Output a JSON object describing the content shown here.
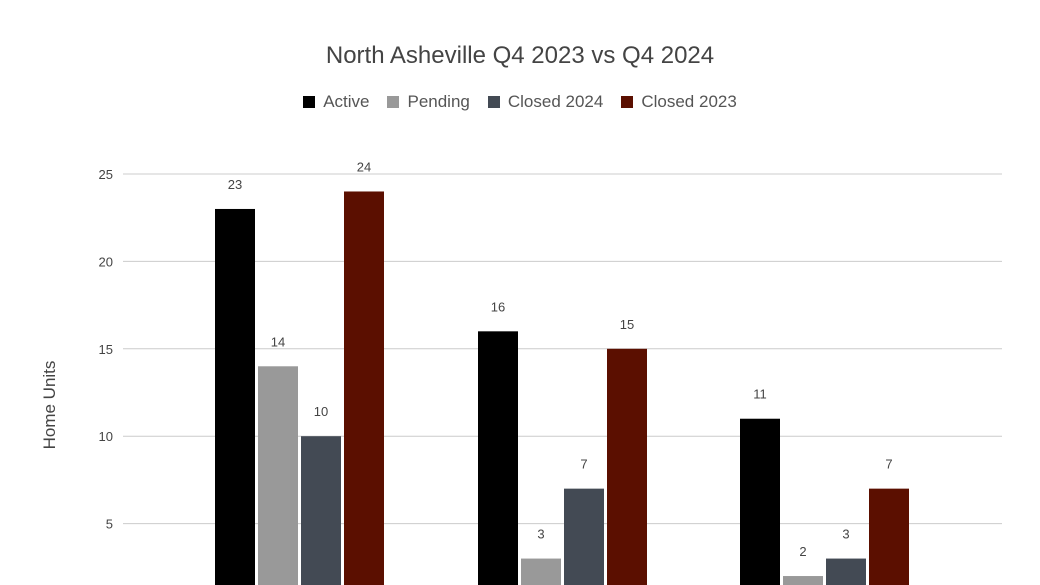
{
  "chart_data": {
    "type": "bar",
    "title": "North Asheville Q4 2023 vs Q4 2024",
    "ylabel": "Home Units",
    "xlabel": "",
    "ylim": [
      0,
      25
    ],
    "yticks": [
      5,
      10,
      15,
      20,
      25
    ],
    "grid": true,
    "legend_position": "top",
    "categories": [
      "",
      "",
      ""
    ],
    "series": [
      {
        "name": "Active",
        "color": "#000000",
        "values": [
          23,
          16,
          11
        ]
      },
      {
        "name": "Pending",
        "color": "#999999",
        "values": [
          14,
          3,
          2
        ]
      },
      {
        "name": "Closed 2024",
        "color": "#434a54",
        "values": [
          10,
          7,
          3
        ]
      },
      {
        "name": "Closed 2023",
        "color": "#5b0f00",
        "values": [
          24,
          15,
          7
        ]
      }
    ]
  }
}
